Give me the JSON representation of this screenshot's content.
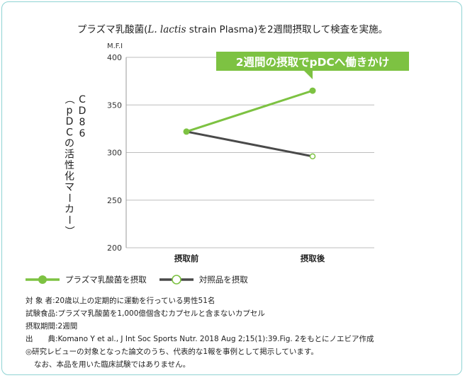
{
  "title_pre": "プラズマ乳酸菌(",
  "title_species": "L. lactis",
  "title_post": " strain Plasma)を2週間摂取して検査を実施。",
  "chart_data": {
    "type": "line",
    "categories": [
      "摂取前",
      "摂取後"
    ],
    "series": [
      {
        "name": "プラズマ乳酸菌を摂取",
        "values": [
          322,
          365
        ],
        "color": "#7dc242"
      },
      {
        "name": "対照品を摂取",
        "values": [
          322,
          296
        ],
        "color": "#4a4a4a"
      }
    ],
    "ylim": [
      200,
      400
    ],
    "yticks": [
      200,
      250,
      300,
      350,
      400
    ],
    "yunit": "M.F.I",
    "ylabel": "CD86（pDCの活性化マーカー）",
    "annotation": "2週間の摂取でpDCへ働きかけ",
    "grid": true,
    "legend_position": "bottom-left"
  },
  "colors": {
    "accent": "#7dc242",
    "control": "#4a4a4a",
    "border": "#8fd3d3"
  },
  "notes": [
    "対 象 者:20歳以上の定期的に運動を行っている男性51名",
    "試験食品:プラズマ乳酸菌を1,000億個含むカプセルと含まないカプセル",
    "摂取期間:2週間",
    "出　　典:Komano Y et al., J Int Soc Sports Nutr. 2018 Aug 2;15(1):39.Fig. 2をもとにノエビア作成",
    "◎研究レビューの対象となった論文のうち、代表的な1報を事例として掲示しています。"
  ],
  "note_indent": "なお、本品を用いた臨床試験ではありません。"
}
